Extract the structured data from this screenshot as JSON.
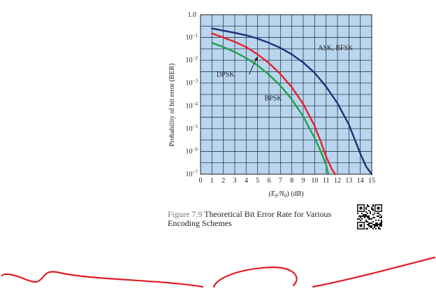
{
  "chart_data": {
    "type": "line",
    "xlabel_parts": [
      "(E",
      "b",
      "/N",
      "0",
      ") (dB)"
    ],
    "ylabel": "Probability of bit error (BER)",
    "xlim": [
      0,
      15
    ],
    "ylim": [
      1e-07,
      1
    ],
    "yscale": "log",
    "grid": true,
    "background": "#b9d6ee",
    "x_ticks": [
      "0",
      "1",
      "2",
      "3",
      "4",
      "5",
      "6",
      "7",
      "8",
      "9",
      "10",
      "11",
      "12",
      "13",
      "14",
      "15"
    ],
    "y_ticks": [
      {
        "value": 1,
        "base": "1.0",
        "exp": ""
      },
      {
        "value": 0.1,
        "base": "10",
        "exp": "−1"
      },
      {
        "value": 0.01,
        "base": "10",
        "exp": "−2"
      },
      {
        "value": 0.001,
        "base": "10",
        "exp": "−3"
      },
      {
        "value": 0.0001,
        "base": "10",
        "exp": "−4"
      },
      {
        "value": 1e-05,
        "base": "10",
        "exp": "−5"
      },
      {
        "value": 1e-06,
        "base": "10",
        "exp": "−6"
      },
      {
        "value": 1e-07,
        "base": "10",
        "exp": "−7"
      }
    ],
    "series": [
      {
        "name": "ASK, BFSK",
        "color": "#1f2f7a",
        "x": [
          1,
          2,
          3,
          4,
          5,
          6,
          7,
          8,
          9,
          10,
          11,
          12,
          13,
          14,
          14.5,
          15
        ],
        "y": [
          0.25,
          0.2,
          0.16,
          0.125,
          0.09,
          0.058,
          0.035,
          0.018,
          0.008,
          0.0028,
          0.0007,
          0.00013,
          1.5e-05,
          8e-07,
          2.2e-07,
          1e-07
        ]
      },
      {
        "name": "DPSK",
        "color": "#e8202a",
        "x": [
          1,
          2,
          3,
          4,
          5,
          6,
          7,
          8,
          9,
          10,
          10.5,
          11,
          11.5,
          11.8
        ],
        "y": [
          0.15,
          0.1,
          0.065,
          0.038,
          0.018,
          0.0075,
          0.0025,
          0.00065,
          0.00012,
          1.3e-05,
          3e-06,
          6e-07,
          1.7e-07,
          1e-07
        ]
      },
      {
        "name": "BPSK",
        "color": "#22a04c",
        "x": [
          1,
          2,
          3,
          4,
          5,
          6,
          7,
          8,
          9,
          9.6,
          10,
          10.5,
          11,
          11.2
        ],
        "y": [
          0.058,
          0.038,
          0.023,
          0.0125,
          0.006,
          0.0023,
          0.00077,
          0.00019,
          3.4e-05,
          9e-06,
          3.9e-06,
          1.1e-06,
          2.6e-07,
          1e-07
        ]
      }
    ],
    "annotations": [
      {
        "text": "ASK, BFSK",
        "x": 10.3,
        "y": 0.028
      },
      {
        "text": "DPSK",
        "x": 1.4,
        "y": 0.0019
      },
      {
        "text": "BPSK",
        "x": 5.6,
        "y": 0.000175
      }
    ],
    "arrow": {
      "from_x": 4.25,
      "from_y": 0.0024,
      "to_x": 5.0,
      "to_y": 0.0145
    }
  },
  "caption": {
    "figure_number": "Figure 7.9",
    "text_line1": "Theoretical Bit Error Rate for Various",
    "text_line2": "Encoding Schemes"
  },
  "colors": {
    "scribble": "#e01e22",
    "qr": "#111111"
  },
  "icons": {
    "qr": "qr-code-icon"
  }
}
